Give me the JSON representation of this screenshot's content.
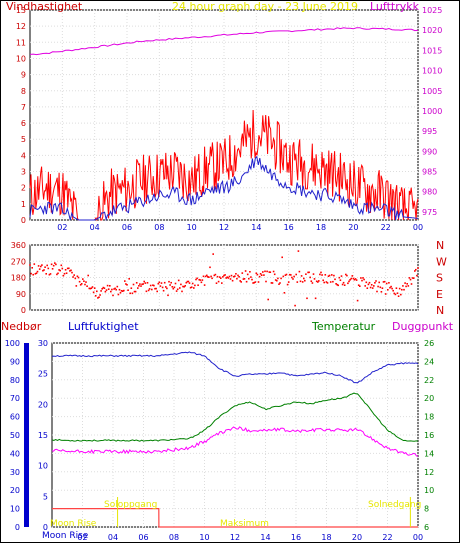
{
  "header": {
    "left_label": "Vindhastighet",
    "title": "24 hour graph day - 23 June 2019",
    "right_label": "Lufttrykk",
    "left_color": "#cc0000",
    "title_color": "#e6e600",
    "right_color": "#cc00cc"
  },
  "mid_header": {
    "labels": [
      "Nedbør",
      "Luftfuktighet",
      "Temperatur",
      "Duggpunkt"
    ],
    "colors": [
      "#cc0000",
      "#0000cc",
      "#008000",
      "#cc00cc"
    ]
  },
  "bottom_annotations": {
    "left_bottom": "Moon Rise",
    "left_bottom_2": "Moon Rise",
    "left_mid": "Soloppgang",
    "right_mid": "Solnedgang",
    "center_bottom": "Maksimum"
  },
  "chart_data": [
    {
      "type": "line",
      "title": "24 hour graph day - 23 June 2019",
      "x_ticks": [
        "02",
        "04",
        "06",
        "08",
        "10",
        "12",
        "14",
        "16",
        "18",
        "20",
        "22",
        "00"
      ],
      "y_left": {
        "label": "Vindhastighet",
        "range": [
          0,
          13
        ],
        "ticks": [
          0,
          1,
          2,
          3,
          4,
          5,
          6,
          7,
          8,
          9,
          10,
          11,
          12,
          13
        ]
      },
      "y_right": {
        "label": "Lufttrykk",
        "range": [
          973,
          1025
        ],
        "ticks": [
          975,
          980,
          985,
          990,
          995,
          1000,
          1005,
          1010,
          1015,
          1020,
          1025
        ]
      },
      "series": [
        {
          "name": "Lufttrykk",
          "axis": "right",
          "color": "#e000e0",
          "x": [
            0,
            1,
            2,
            3,
            4,
            5,
            6,
            7,
            8,
            9,
            10,
            11,
            12,
            13,
            14,
            15,
            16,
            17,
            18,
            19,
            20,
            21,
            22,
            23,
            24
          ],
          "values": [
            1014,
            1014.3,
            1014.8,
            1015.3,
            1015.8,
            1016.3,
            1016.8,
            1017.3,
            1017.6,
            1017.9,
            1018.2,
            1018.5,
            1018.8,
            1019.1,
            1019.4,
            1019.6,
            1019.8,
            1020,
            1020.2,
            1020.4,
            1020.5,
            1020.4,
            1020.3,
            1020.2,
            1020
          ]
        },
        {
          "name": "Vindkast",
          "axis": "left",
          "color": "#ff0000",
          "x": [
            0,
            1,
            2,
            3,
            4,
            5,
            6,
            7,
            8,
            9,
            10,
            11,
            12,
            13,
            14,
            15,
            16,
            17,
            18,
            19,
            20,
            21,
            22,
            23,
            24
          ],
          "values": [
            1.5,
            2,
            1.8,
            0,
            0,
            1.6,
            1.9,
            2.5,
            2.8,
            3,
            2.4,
            3.2,
            3.5,
            4.5,
            5.5,
            4.8,
            3.8,
            3.5,
            3.2,
            2.8,
            2.2,
            1.8,
            1.5,
            0.6,
            0.3
          ]
        },
        {
          "name": "Vindhastighet",
          "axis": "left",
          "color": "#2222cc",
          "x": [
            0,
            1,
            2,
            3,
            4,
            5,
            6,
            7,
            8,
            9,
            10,
            11,
            12,
            13,
            14,
            15,
            16,
            17,
            18,
            19,
            20,
            21,
            22,
            23,
            24
          ],
          "values": [
            0.5,
            0.8,
            0.6,
            0,
            0,
            0.5,
            0.8,
            1.2,
            1.5,
            1.6,
            1.2,
            1.8,
            2,
            2.5,
            3.8,
            2.8,
            2.2,
            1.8,
            1.6,
            1.4,
            0.9,
            0.7,
            0.6,
            0.2,
            0.1
          ]
        }
      ]
    },
    {
      "type": "scatter",
      "x_ticks": [
        "02",
        "04",
        "06",
        "08",
        "10",
        "12",
        "14",
        "16",
        "18",
        "20",
        "22",
        "00"
      ],
      "y_left": {
        "range": [
          0,
          360
        ],
        "ticks": [
          0,
          90,
          180,
          270,
          360
        ]
      },
      "y_right_labels": [
        "N",
        "W",
        "S",
        "E",
        "N"
      ],
      "series": [
        {
          "name": "Vindretning",
          "color": "#ff0000",
          "x": [
            0,
            1,
            2,
            3,
            4,
            5,
            6,
            7,
            8,
            9,
            10,
            11,
            12,
            13,
            14,
            15,
            16,
            17,
            18,
            19,
            20,
            21,
            22,
            23,
            24
          ],
          "values": [
            225,
            230,
            220,
            180,
            100,
            105,
            115,
            125,
            130,
            135,
            140,
            160,
            170,
            180,
            185,
            180,
            175,
            180,
            175,
            170,
            160,
            150,
            120,
            100,
            230
          ]
        }
      ]
    },
    {
      "type": "line",
      "x_ticks": [
        "Moon Rise",
        "02",
        "04",
        "06",
        "08",
        "10",
        "12",
        "14",
        "16",
        "18",
        "20",
        "22",
        "00"
      ],
      "y_left_outer": {
        "label": "Nedbør",
        "range": [
          0,
          100
        ],
        "ticks": [
          0,
          10,
          20,
          30,
          40,
          50,
          60,
          70,
          80,
          90,
          100
        ]
      },
      "y_left_inner": {
        "label": "Luftfuktighet",
        "range": [
          0,
          30
        ],
        "ticks": [
          0,
          5,
          10,
          15,
          20,
          25,
          30
        ]
      },
      "y_right": {
        "label": "Temperatur",
        "range": [
          6,
          26
        ],
        "ticks": [
          6,
          8,
          10,
          12,
          14,
          16,
          18,
          20,
          22,
          24,
          26
        ]
      },
      "series": [
        {
          "name": "Luftfuktighet",
          "axis": "left_outer",
          "color": "#2222cc",
          "x": [
            0,
            1,
            2,
            3,
            4,
            5,
            6,
            7,
            8,
            9,
            10,
            11,
            12,
            13,
            14,
            15,
            16,
            17,
            18,
            19,
            20,
            21,
            22,
            23,
            24
          ],
          "values": [
            93,
            93,
            93,
            93,
            93,
            93,
            93,
            93,
            94,
            95,
            93,
            86,
            82,
            83,
            83,
            84,
            82,
            83,
            84,
            82,
            78,
            84,
            88,
            89,
            89
          ]
        },
        {
          "name": "Temperatur",
          "axis": "right",
          "color": "#008000",
          "x": [
            0,
            1,
            2,
            3,
            4,
            5,
            6,
            7,
            8,
            9,
            10,
            11,
            12,
            13,
            14,
            15,
            16,
            17,
            18,
            19,
            20,
            21,
            22,
            23,
            24
          ],
          "values": [
            15.5,
            15.4,
            15.4,
            15.4,
            15.4,
            15.4,
            15.4,
            15.4,
            15.5,
            15.6,
            16.5,
            18,
            19.2,
            19.6,
            18.8,
            19.2,
            19.6,
            19.4,
            19.8,
            20,
            20.6,
            18.5,
            16.5,
            15.4,
            15.3
          ]
        },
        {
          "name": "Duggpunkt",
          "axis": "right",
          "color": "#ff00ff",
          "x": [
            0,
            1,
            2,
            3,
            4,
            5,
            6,
            7,
            8,
            9,
            10,
            11,
            12,
            13,
            14,
            15,
            16,
            17,
            18,
            19,
            20,
            21,
            22,
            23,
            24
          ],
          "values": [
            14.3,
            14.2,
            14.2,
            14.2,
            14.2,
            14.2,
            14.2,
            14.2,
            14.4,
            14.6,
            15.3,
            16.2,
            16.8,
            16.5,
            16.5,
            16.6,
            16.4,
            16.5,
            16.6,
            16.5,
            16.6,
            15.6,
            14.6,
            14,
            13.8
          ]
        },
        {
          "name": "Nedbør",
          "axis": "left_outer",
          "color": "#ff4444",
          "x": [
            0,
            1,
            2,
            3,
            4,
            5,
            6,
            7,
            7.01,
            8,
            9,
            10,
            11,
            12,
            13,
            14,
            15,
            16,
            17,
            18,
            19,
            20,
            21,
            22,
            23,
            24
          ],
          "values": [
            10,
            10,
            10,
            10,
            10,
            10,
            10,
            10,
            0,
            0,
            0,
            0,
            0,
            0,
            0,
            0,
            0,
            0,
            0,
            0,
            0,
            0,
            0,
            0,
            0,
            0
          ]
        }
      ]
    }
  ]
}
